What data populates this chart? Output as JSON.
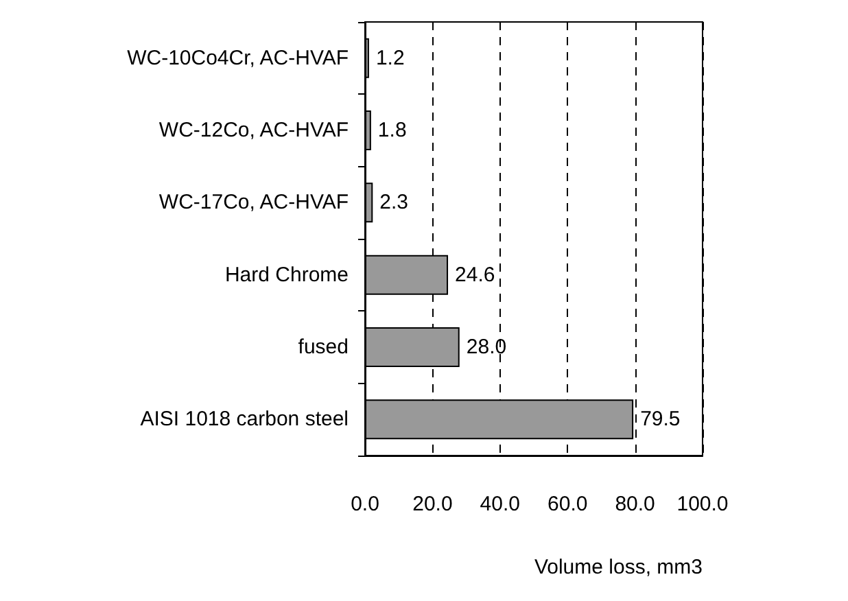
{
  "chart_data": {
    "type": "bar",
    "orientation": "horizontal",
    "xlabel": "Volume loss, mm3",
    "categories": [
      "WC-10Co4Cr, AC-HVAF",
      "WC-12Co, AC-HVAF",
      "WC-17Co, AC-HVAF",
      "Hard Chrome",
      "fused",
      "AISI 1018 carbon steel"
    ],
    "values": [
      1.2,
      1.8,
      2.3,
      24.6,
      28.0,
      79.5
    ],
    "value_labels": [
      "1.2",
      "1.8",
      "2.3",
      "24.6",
      "28.0",
      "79.5"
    ],
    "color": "#999999",
    "xlim": [
      0,
      100
    ],
    "xticks": [
      {
        "value": 0,
        "label": "0.0"
      },
      {
        "value": 20,
        "label": "20.0"
      },
      {
        "value": 40,
        "label": "40.0"
      },
      {
        "value": 60,
        "label": "60.0"
      },
      {
        "value": 80,
        "label": "80.0"
      },
      {
        "value": 100,
        "label": "100.0"
      }
    ],
    "grid": "x"
  }
}
